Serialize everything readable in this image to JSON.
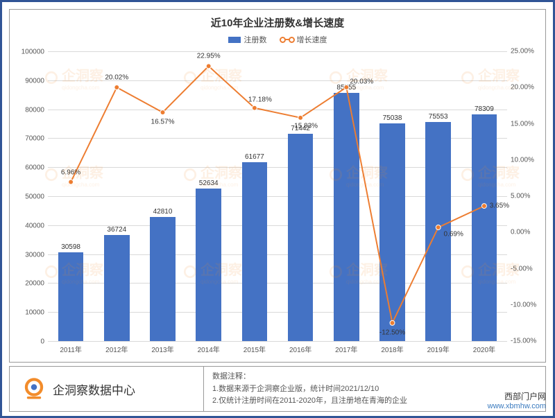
{
  "chart": {
    "title": "近10年企业注册数&增长速度",
    "legend": {
      "bar": "注册数",
      "line": "增长速度"
    },
    "categories": [
      "2011年",
      "2012年",
      "2013年",
      "2014年",
      "2015年",
      "2016年",
      "2017年",
      "2018年",
      "2019年",
      "2020年"
    ],
    "bar_values": [
      30598,
      36724,
      42810,
      52634,
      61677,
      71442,
      85755,
      75038,
      75553,
      78309
    ],
    "line_values": [
      6.96,
      20.02,
      16.57,
      22.95,
      17.18,
      15.83,
      20.03,
      -12.5,
      0.69,
      3.65
    ],
    "line_labels": [
      "6.96%",
      "20.02%",
      "16.57%",
      "22.95%",
      "17.18%",
      "15.83%",
      "20.03%",
      "-12.50%",
      "0.69%",
      "3.65%"
    ],
    "y_left": {
      "min": 0,
      "max": 100000,
      "step": 10000
    },
    "y_right": {
      "min": -15,
      "max": 25,
      "step": 5,
      "fmt": "pct"
    },
    "bar_color": "#4472c4",
    "line_color": "#ed7d31",
    "bar_width_ratio": 0.55
  },
  "footer": {
    "brand": "企洞察数据中心",
    "note_title": "数据注释：",
    "note1": "1.数据来源于企洞察企业版，统计时间2021/12/10",
    "note2": "2.仅统计注册时间在2011-2020年，且注册地在青海的企业"
  },
  "watermark": {
    "text": "企洞察",
    "sub": "qidongcha.com"
  },
  "sitemark": {
    "cn": "西部门户网",
    "url": "www.xbmhw.com"
  }
}
